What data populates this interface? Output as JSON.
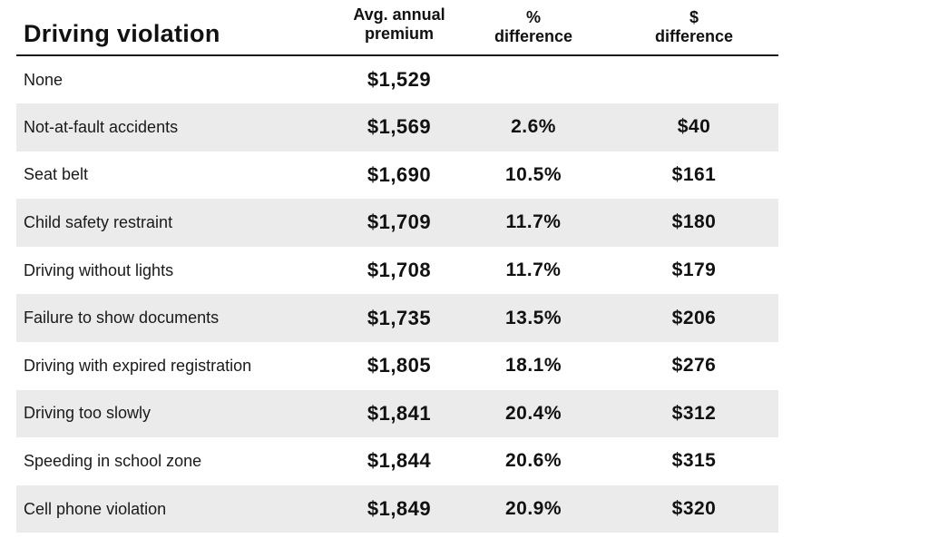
{
  "chart_data": {
    "type": "table",
    "columns": [
      {
        "label": "Driving violation",
        "lines": [
          "Driving violation"
        ]
      },
      {
        "label": "Avg. annual premium",
        "lines": [
          "Avg. annual",
          "premium"
        ]
      },
      {
        "label": "% difference",
        "lines": [
          "%",
          "difference"
        ]
      },
      {
        "label": "$ difference",
        "lines": [
          "$",
          "difference"
        ]
      }
    ],
    "rows": [
      {
        "violation": "None",
        "premium": "$1,529",
        "pct_diff": "",
        "dollar_diff": ""
      },
      {
        "violation": "Not-at-fault accidents",
        "premium": "$1,569",
        "pct_diff": "2.6%",
        "dollar_diff": "$40"
      },
      {
        "violation": "Seat belt",
        "premium": "$1,690",
        "pct_diff": "10.5%",
        "dollar_diff": "$161"
      },
      {
        "violation": "Child safety restraint",
        "premium": "$1,709",
        "pct_diff": "11.7%",
        "dollar_diff": "$180"
      },
      {
        "violation": "Driving without lights",
        "premium": "$1,708",
        "pct_diff": "11.7%",
        "dollar_diff": "$179"
      },
      {
        "violation": "Failure to show documents",
        "premium": "$1,735",
        "pct_diff": "13.5%",
        "dollar_diff": "$206"
      },
      {
        "violation": "Driving with expired registration",
        "premium": "$1,805",
        "pct_diff": "18.1%",
        "dollar_diff": "$276"
      },
      {
        "violation": "Driving too slowly",
        "premium": "$1,841",
        "pct_diff": "20.4%",
        "dollar_diff": "$312"
      },
      {
        "violation": "Speeding in school zone",
        "premium": "$1,844",
        "pct_diff": "20.6%",
        "dollar_diff": "$315"
      },
      {
        "violation": "Cell phone violation",
        "premium": "$1,849",
        "pct_diff": "20.9%",
        "dollar_diff": "$320"
      }
    ],
    "style": {
      "row_shade_color": "#ebebec",
      "header_rule_color": "#1a1a1a",
      "text_color": "#111111"
    }
  }
}
